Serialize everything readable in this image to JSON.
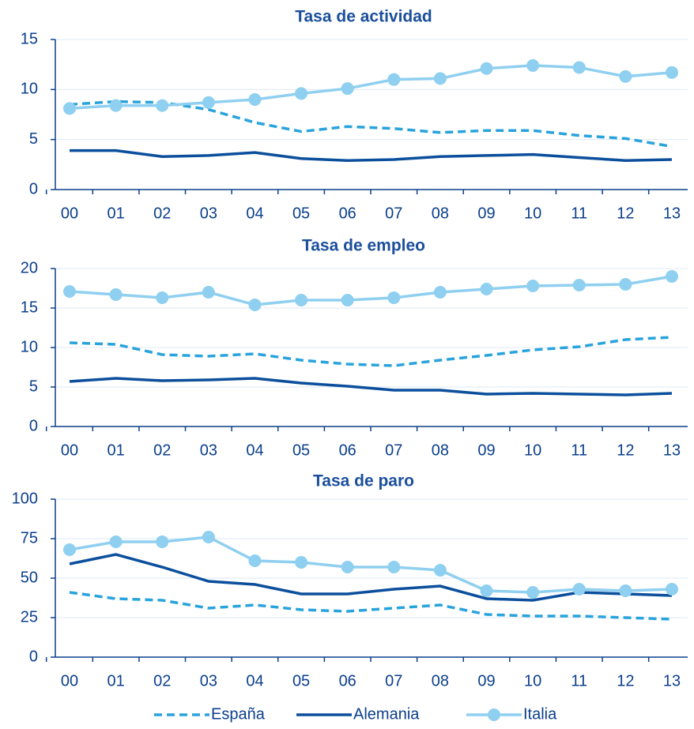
{
  "chart_data": [
    {
      "type": "line",
      "title": "Tasa de actividad",
      "categories": [
        "00",
        "01",
        "02",
        "03",
        "04",
        "05",
        "06",
        "07",
        "08",
        "09",
        "10",
        "11",
        "12",
        "13"
      ],
      "ylim": [
        0,
        15
      ],
      "yticks": [
        0,
        5,
        10,
        15
      ],
      "grid": true,
      "series": [
        {
          "name": "España",
          "color": "#29a3dc",
          "dashed": true,
          "markers": false,
          "values": [
            8.5,
            8.8,
            8.7,
            8.0,
            6.7,
            5.8,
            6.3,
            6.1,
            5.7,
            5.9,
            5.9,
            5.4,
            5.1,
            4.3
          ]
        },
        {
          "name": "Alemania",
          "color": "#0b4f9c",
          "dashed": false,
          "markers": false,
          "values": [
            3.9,
            3.9,
            3.3,
            3.4,
            3.7,
            3.1,
            2.9,
            3.0,
            3.3,
            3.4,
            3.5,
            3.2,
            2.9,
            3.0
          ]
        },
        {
          "name": "Italia",
          "color": "#8fcff0",
          "dashed": false,
          "markers": true,
          "values": [
            8.1,
            8.4,
            8.4,
            8.7,
            9.0,
            9.6,
            10.1,
            11.0,
            11.1,
            12.1,
            12.4,
            12.2,
            11.3,
            11.7
          ]
        }
      ]
    },
    {
      "type": "line",
      "title": "Tasa de empleo",
      "categories": [
        "00",
        "01",
        "02",
        "03",
        "04",
        "05",
        "06",
        "07",
        "08",
        "09",
        "10",
        "11",
        "12",
        "13"
      ],
      "ylim": [
        0,
        20
      ],
      "yticks": [
        0,
        5,
        10,
        15,
        20
      ],
      "grid": true,
      "series": [
        {
          "name": "España",
          "color": "#29a3dc",
          "dashed": true,
          "markers": false,
          "values": [
            10.6,
            10.4,
            9.1,
            8.9,
            9.2,
            8.4,
            7.9,
            7.7,
            8.4,
            9.0,
            9.7,
            10.1,
            11.0,
            11.3
          ]
        },
        {
          "name": "Alemania",
          "color": "#0b4f9c",
          "dashed": false,
          "markers": false,
          "values": [
            5.7,
            6.1,
            5.8,
            5.9,
            6.1,
            5.5,
            5.1,
            4.6,
            4.6,
            4.1,
            4.2,
            4.1,
            4.0,
            4.2
          ]
        },
        {
          "name": "Italia",
          "color": "#8fcff0",
          "dashed": false,
          "markers": true,
          "values": [
            17.1,
            16.7,
            16.3,
            17.0,
            15.4,
            16.0,
            16.0,
            16.3,
            17.0,
            17.4,
            17.8,
            17.9,
            18.0,
            19.0
          ]
        }
      ]
    },
    {
      "type": "line",
      "title": "Tasa de paro",
      "categories": [
        "00",
        "01",
        "02",
        "03",
        "04",
        "05",
        "06",
        "07",
        "08",
        "09",
        "10",
        "11",
        "12",
        "13"
      ],
      "ylim": [
        0,
        100
      ],
      "yticks": [
        0,
        25,
        50,
        75,
        100
      ],
      "grid": true,
      "series": [
        {
          "name": "España",
          "color": "#29a3dc",
          "dashed": true,
          "markers": false,
          "values": [
            41,
            37,
            36,
            31,
            33,
            30,
            29,
            31,
            33,
            27,
            26,
            26,
            25,
            24
          ]
        },
        {
          "name": "Alemania",
          "color": "#0b4f9c",
          "dashed": false,
          "markers": false,
          "values": [
            59,
            65,
            57,
            48,
            46,
            40,
            40,
            43,
            45,
            37,
            36,
            41,
            40,
            39
          ]
        },
        {
          "name": "Italia",
          "color": "#8fcff0",
          "dashed": false,
          "markers": true,
          "values": [
            68,
            73,
            73,
            76,
            61,
            60,
            57,
            57,
            55,
            42,
            41,
            43,
            42,
            43
          ]
        }
      ]
    }
  ]
}
